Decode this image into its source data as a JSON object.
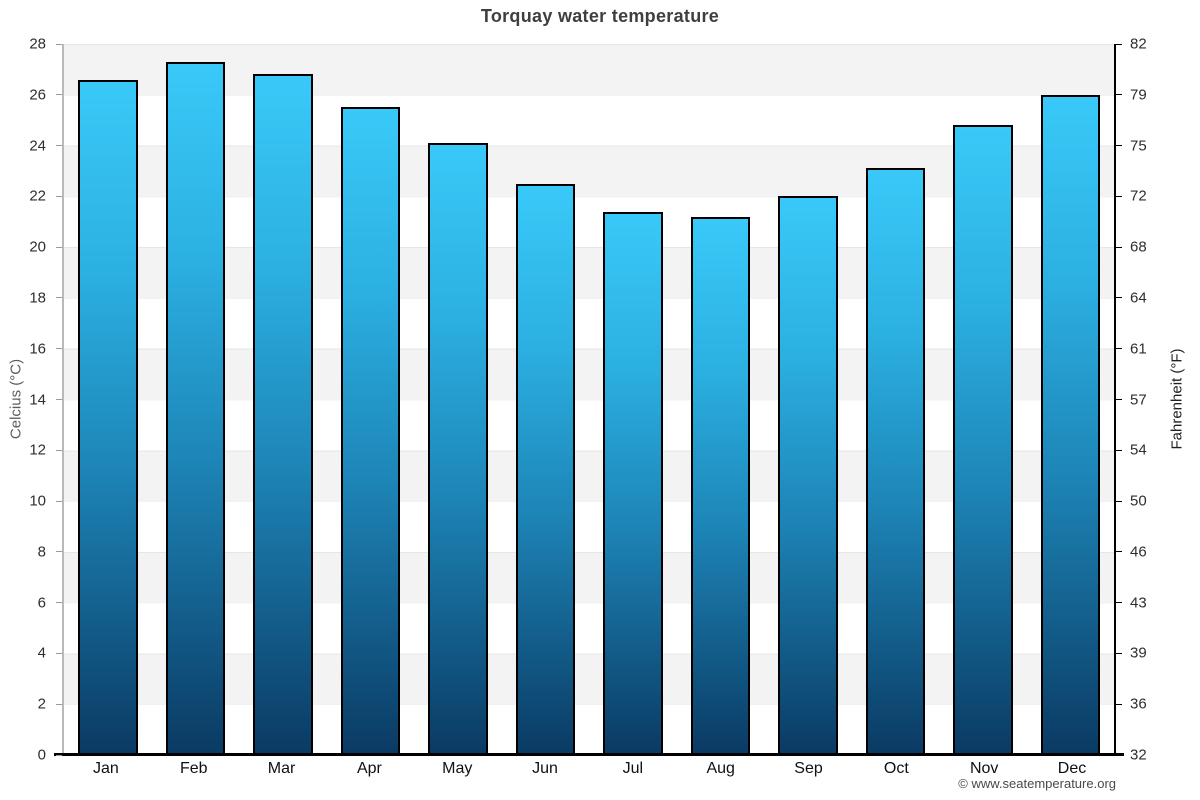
{
  "title": "Torquay water temperature",
  "footer": "© www.seatemperature.org",
  "chart_data": {
    "type": "bar",
    "title": "Torquay water temperature",
    "categories": [
      "Jan",
      "Feb",
      "Mar",
      "Apr",
      "May",
      "Jun",
      "Jul",
      "Aug",
      "Sep",
      "Oct",
      "Nov",
      "Dec"
    ],
    "values": [
      26.6,
      27.3,
      26.8,
      25.5,
      24.1,
      22.5,
      21.4,
      21.2,
      22.0,
      23.1,
      24.8,
      26.0
    ],
    "unit": "°C",
    "ylabel": "Celcius (°C)",
    "ylabel_right": "Fahrenheit (°F)",
    "ylim": [
      0,
      28
    ],
    "celsius_ticks": [
      28,
      26,
      24,
      22,
      20,
      18,
      16,
      14,
      12,
      10,
      8,
      6,
      4,
      2,
      0
    ],
    "fahrenheit_ticks": [
      82,
      79,
      75,
      72,
      68,
      64,
      61,
      57,
      54,
      50,
      46,
      43,
      39,
      36,
      32
    ],
    "xlabel": "",
    "legend": "none",
    "grid": "horizontal gridlines every 2°C with alternating gray/white bands",
    "colors": {
      "bar_top": "#39c9f8",
      "bar_upper": "#2cb0e2",
      "bar_mid": "#1d84b6",
      "bar_bottom": "#0a3a63",
      "bar_border": "#000000",
      "band_gray": "#f3f3f3",
      "axis_bottom": "#000000",
      "axis_left": "#b9b9b9",
      "title_color": "#3f3f3f"
    }
  }
}
